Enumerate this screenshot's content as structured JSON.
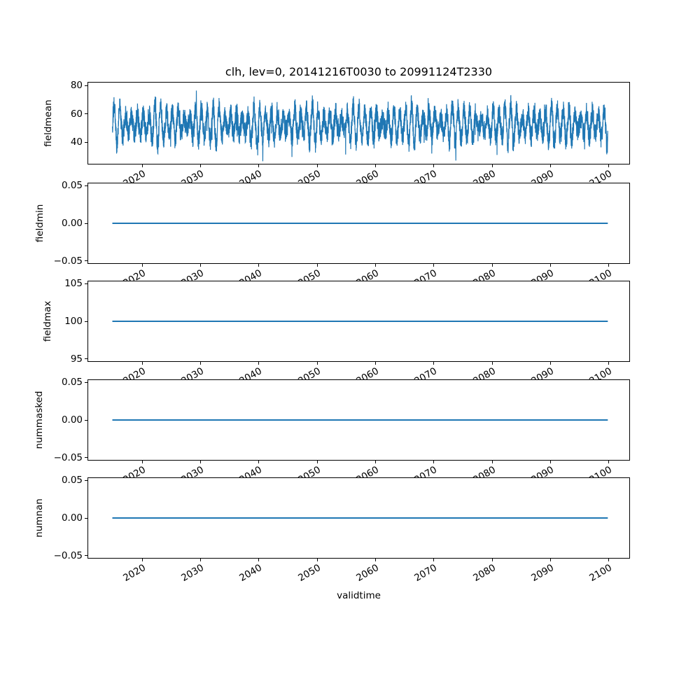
{
  "chart_data": {
    "type": "line",
    "title": "clh, lev=0, 20141216T0030 to 20991124T2330",
    "xlabel": "validtime",
    "line_color": "#1f77b4",
    "frame_color": "#000000",
    "text_color": "#000000",
    "background": "#ffffff",
    "grid": "off",
    "legend": "none",
    "x": {
      "start": 2014.96,
      "end": 2099.9,
      "lim": [
        2010.7,
        2103.7
      ],
      "ticks": [
        {
          "v": 2020,
          "label": "2020"
        },
        {
          "v": 2030,
          "label": "2030"
        },
        {
          "v": 2040,
          "label": "2040"
        },
        {
          "v": 2050,
          "label": "2050"
        },
        {
          "v": 2060,
          "label": "2060"
        },
        {
          "v": 2070,
          "label": "2070"
        },
        {
          "v": 2080,
          "label": "2080"
        },
        {
          "v": 2090,
          "label": "2090"
        },
        {
          "v": 2100,
          "label": "2100"
        }
      ]
    },
    "subplots": [
      {
        "ylabel": "fieldmean",
        "kind": "noisy",
        "ylim": [
          24.5,
          82.5
        ],
        "yticks": [
          {
            "v": 40,
            "label": "40"
          },
          {
            "v": 60,
            "label": "60"
          },
          {
            "v": 80,
            "label": "80"
          }
        ],
        "signal": {
          "mean": 52.5,
          "seasonal_amplitude": 9,
          "noise_amplitude": 7.5,
          "approx_min": 26,
          "approx_max": 78.5,
          "period_years": 1,
          "seed": 1234567,
          "samples": 4200
        }
      },
      {
        "ylabel": "fieldmin",
        "kind": "constant",
        "value": 0,
        "ylim": [
          -0.054,
          0.054
        ],
        "yticks": [
          {
            "v": -0.05,
            "label": "−0.05"
          },
          {
            "v": 0,
            "label": "0.00"
          },
          {
            "v": 0.05,
            "label": "0.05"
          }
        ]
      },
      {
        "ylabel": "fieldmax",
        "kind": "constant",
        "value": 100,
        "ylim": [
          94.6,
          105.4
        ],
        "yticks": [
          {
            "v": 95,
            "label": "95"
          },
          {
            "v": 100,
            "label": "100"
          },
          {
            "v": 105,
            "label": "105"
          }
        ]
      },
      {
        "ylabel": "nummasked",
        "kind": "constant",
        "value": 0,
        "ylim": [
          -0.054,
          0.054
        ],
        "yticks": [
          {
            "v": -0.05,
            "label": "−0.05"
          },
          {
            "v": 0,
            "label": "0.00"
          },
          {
            "v": 0.05,
            "label": "0.05"
          }
        ]
      },
      {
        "ylabel": "numnan",
        "kind": "constant",
        "value": 0,
        "ylim": [
          -0.054,
          0.054
        ],
        "yticks": [
          {
            "v": -0.05,
            "label": "−0.05"
          },
          {
            "v": 0,
            "label": "0.00"
          },
          {
            "v": 0.05,
            "label": "0.05"
          }
        ]
      }
    ]
  }
}
